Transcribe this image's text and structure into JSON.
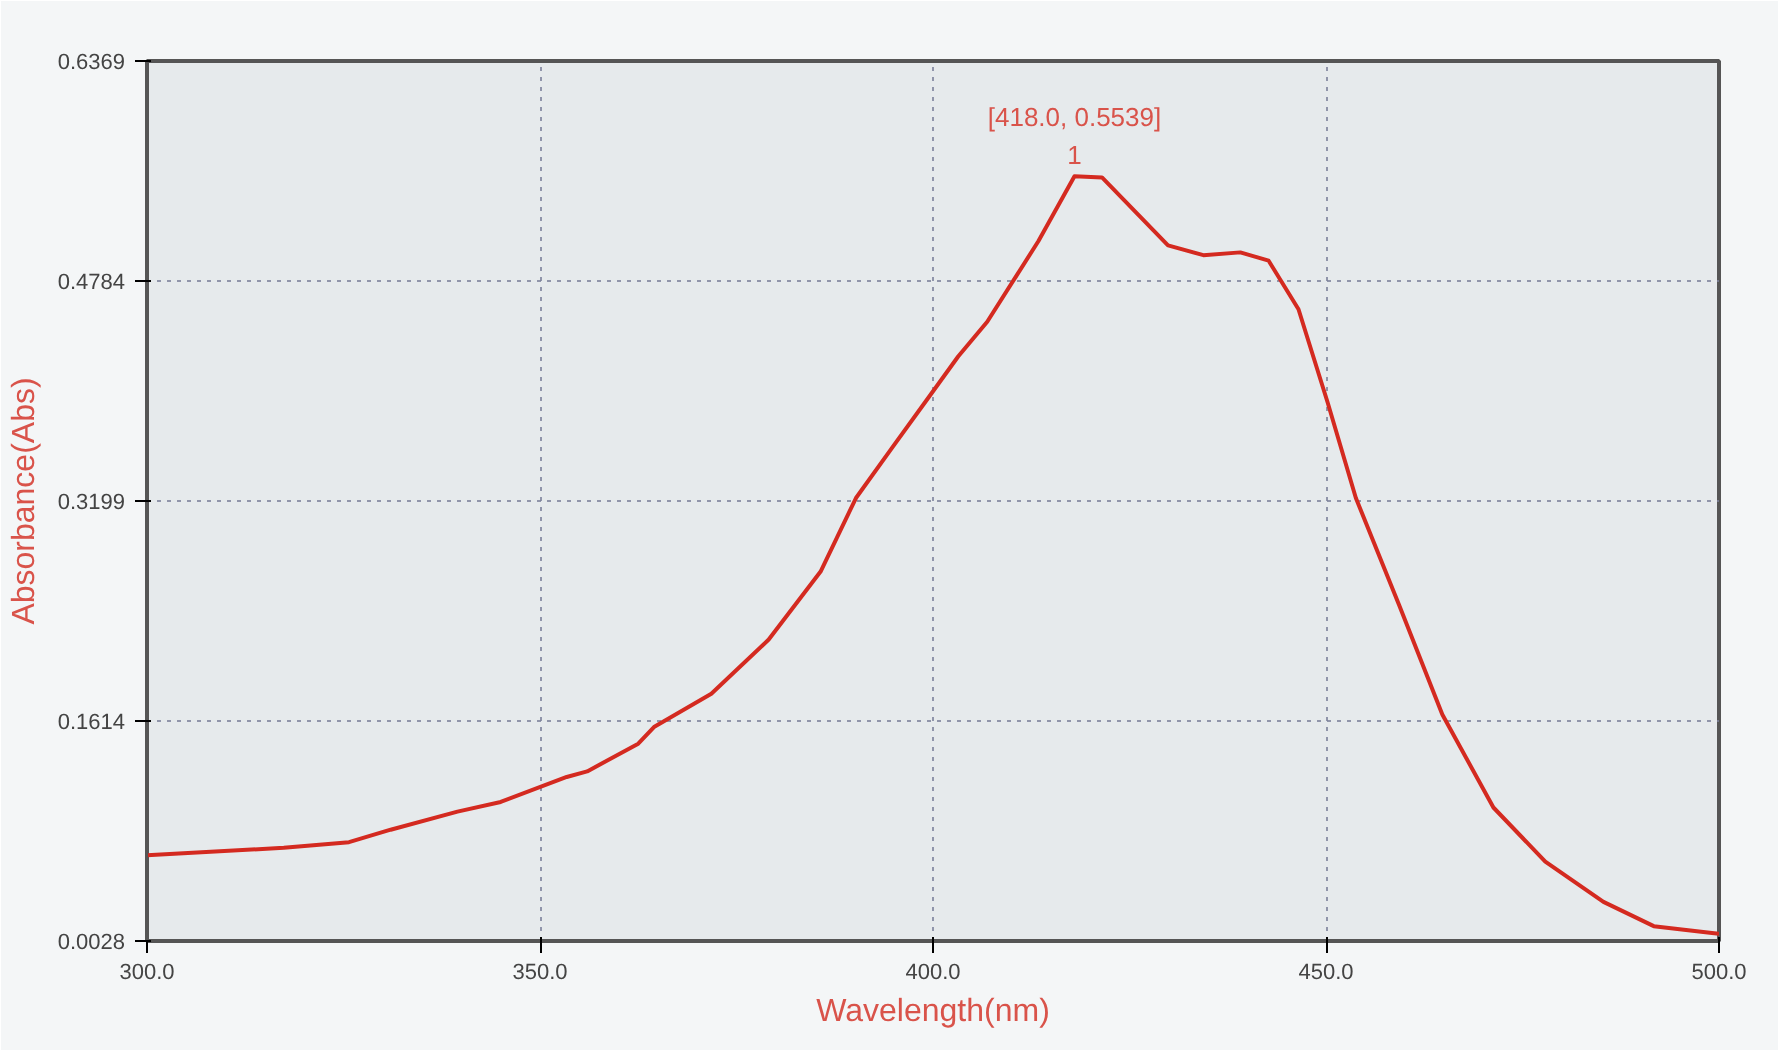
{
  "chart_data": {
    "type": "line",
    "xlabel": "Wavelength(nm)",
    "ylabel": "Absorbance(Abs)",
    "xlim": [
      300,
      500
    ],
    "ylim": [
      0.0028,
      0.6369
    ],
    "xticks": [
      {
        "value": 300,
        "label": "300.0"
      },
      {
        "value": 350,
        "label": "350.0"
      },
      {
        "value": 400,
        "label": "400.0"
      },
      {
        "value": 450,
        "label": "450.0"
      },
      {
        "value": 500,
        "label": "500.0"
      }
    ],
    "yticks": [
      0.0028,
      0.1614,
      0.3199,
      0.4784,
      0.6369
    ],
    "grid": true,
    "line_style": "solid",
    "marker": "none",
    "annotations": [
      {
        "text": "[418.0, 0.5539]",
        "x": 418,
        "y": 0.5539
      },
      {
        "text": "1",
        "x": 418,
        "y": 0.5539
      }
    ],
    "series": [
      {
        "color": "#d42a20",
        "x": [
          300,
          317.4,
          325.7,
          331,
          339.5,
          345,
          353.4,
          356,
          362.5,
          364.5,
          371.8,
          379.1,
          385.7,
          390.2,
          394.9,
          399.5,
          403.2,
          406.9,
          413.4,
          418,
          421.5,
          429.9,
          434.4,
          439.1,
          442.7,
          446.5,
          450.2,
          453.8,
          459.3,
          464.8,
          471.3,
          477.9,
          485.3,
          491.7,
          499.1,
          500
        ],
        "values": [
          0.0645,
          0.07,
          0.074,
          0.083,
          0.096,
          0.103,
          0.121,
          0.125,
          0.145,
          0.157,
          0.181,
          0.22,
          0.269,
          0.322,
          0.359,
          0.395,
          0.424,
          0.449,
          0.507,
          0.5539,
          0.553,
          0.504,
          0.497,
          0.499,
          0.493,
          0.458,
          0.391,
          0.322,
          0.245,
          0.166,
          0.099,
          0.06,
          0.031,
          0.0135,
          0.0086,
          0.008
        ]
      }
    ]
  }
}
